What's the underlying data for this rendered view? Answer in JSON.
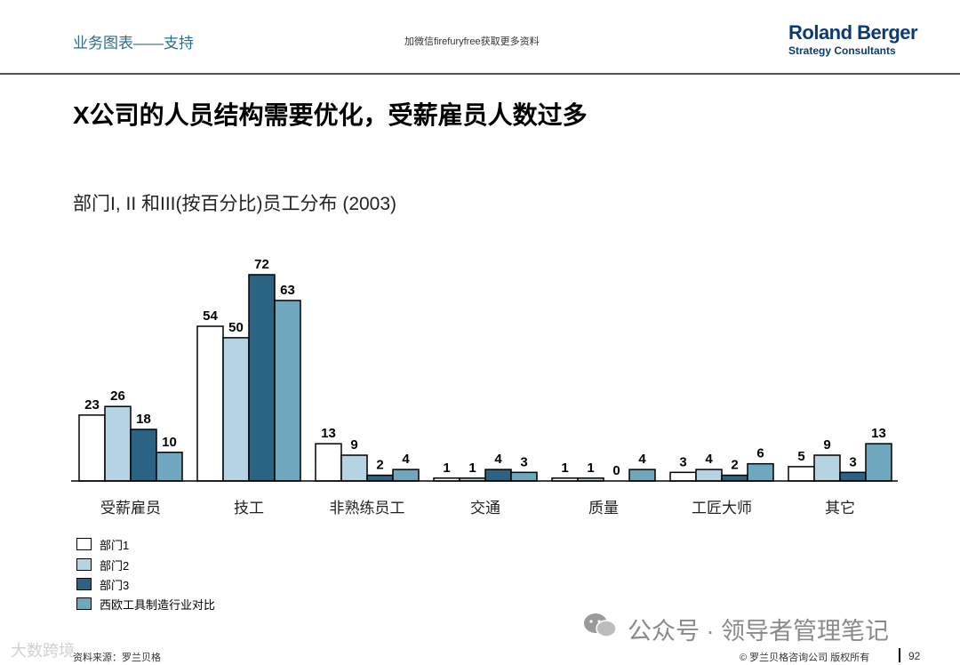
{
  "header": {
    "section_label": "业务图表——支持",
    "wechat_note": "加微信firefuryfree获取更多资料",
    "brand_name": "Roland Berger",
    "brand_sub": "Strategy Consultants"
  },
  "main_title": "X公司的人员结构需要优化，受薪雇员人数过多",
  "chart_data": {
    "type": "bar",
    "title": "部门I, II 和III(按百分比)员工分布 (2003)",
    "categories": [
      "受薪雇员",
      "技工",
      "非熟练员工",
      "交通",
      "质量",
      "工匠大师",
      "其它"
    ],
    "series": [
      {
        "name": "部门1",
        "values": [
          23,
          54,
          13,
          1,
          1,
          3,
          5
        ]
      },
      {
        "name": "部门2",
        "values": [
          26,
          50,
          9,
          1,
          1,
          4,
          9
        ]
      },
      {
        "name": "部门3",
        "values": [
          18,
          72,
          2,
          4,
          0,
          2,
          3
        ]
      },
      {
        "name": "西欧工具制造行业对比",
        "values": [
          10,
          63,
          4,
          3,
          4,
          6,
          13
        ]
      }
    ],
    "ylim": [
      0,
      72
    ],
    "grid": false,
    "legend_position": "bottom-left"
  },
  "colors": {
    "series": [
      "#ffffff",
      "#b5d3e2",
      "#2b6382",
      "#6fa8be"
    ],
    "accent": "#2e6d8e",
    "brand": "#0b3b73"
  },
  "footer": {
    "source_note": "资料来源：罗兰贝格",
    "copyright": "© 罗兰贝格咨询公司 版权所有",
    "page_number": "92"
  },
  "watermarks": {
    "main": "公众号 · 领导者管理笔记",
    "small": "大数跨境"
  }
}
